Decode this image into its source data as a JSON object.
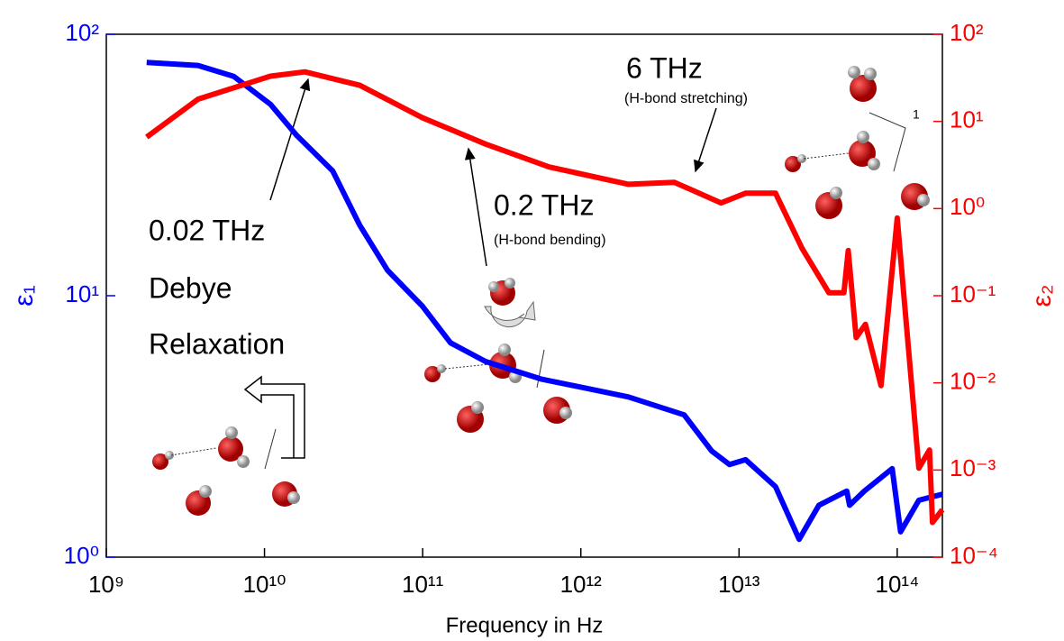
{
  "chart_data": {
    "type": "line",
    "xlabel": "Frequency in Hz",
    "ylabel": "ε₁",
    "y2label": "ε₂",
    "log_x": true,
    "log_y": true,
    "log_y2": true,
    "xlim": [
      1000000000.0,
      193000000000000.0
    ],
    "ylim": [
      1,
      100
    ],
    "y2lim": [
      0.0001,
      100
    ],
    "xticks": [
      {
        "value": 1000000000.0,
        "label": "10⁹"
      },
      {
        "value": 10000000000.0,
        "label": "10¹⁰"
      },
      {
        "value": 100000000000.0,
        "label": "10¹¹"
      },
      {
        "value": 1000000000000.0,
        "label": "10¹²"
      },
      {
        "value": 10000000000000.0,
        "label": "10¹³"
      },
      {
        "value": 100000000000000.0,
        "label": "10¹⁴"
      }
    ],
    "yticks": [
      {
        "value": 1,
        "label": "10⁰"
      },
      {
        "value": 10,
        "label": "10¹"
      },
      {
        "value": 100,
        "label": "10²"
      }
    ],
    "y2ticks": [
      {
        "value": 0.0001,
        "label": "10⁻⁴"
      },
      {
        "value": 0.001,
        "label": "10⁻³"
      },
      {
        "value": 0.01,
        "label": "10⁻²"
      },
      {
        "value": 0.1,
        "label": "10⁻¹"
      },
      {
        "value": 1,
        "label": "10⁰"
      },
      {
        "value": 10,
        "label": "10¹"
      },
      {
        "value": 100,
        "label": "10²"
      }
    ],
    "series": [
      {
        "name": "ε₁",
        "color": "#0000ff",
        "axis": "y",
        "x": [
          1800000000.0,
          3800000000.0,
          6400000000.0,
          10900000000.0,
          16000000000.0,
          27000000000.0,
          40000000000.0,
          60000000000.0,
          100000000000.0,
          150000000000.0,
          250000000000.0,
          560000000000.0,
          2000000000000.0,
          4500000000000.0,
          6700000000000.0,
          8700000000000.0,
          11000000000000.0,
          17000000000000.0,
          24000000000000.0,
          32000000000000.0,
          48000000000000.0,
          50000000000000.0,
          62000000000000.0,
          93000000000000.0,
          105000000000000.0,
          137000000000000.0,
          193000000000000.0
        ],
        "values": [
          78,
          76,
          69,
          54,
          41,
          30,
          18.6,
          12.5,
          9.1,
          6.6,
          5.6,
          4.8,
          4.1,
          3.5,
          2.55,
          2.26,
          2.36,
          1.86,
          1.17,
          1.58,
          1.79,
          1.58,
          1.79,
          2.18,
          1.25,
          1.65,
          1.74
        ]
      },
      {
        "name": "ε₂",
        "color": "#ff0000",
        "axis": "y2",
        "x": [
          1800000000.0,
          3800000000.0,
          10900000000.0,
          18000000000.0,
          40000000000.0,
          100000000000.0,
          250000000000.0,
          630000000000.0,
          2000000000000.0,
          3900000000000.0,
          7700000000000.0,
          11000000000000.0,
          17000000000000.0,
          25000000000000.0,
          37000000000000.0,
          46000000000000.0,
          49000000000000.0,
          55000000000000.0,
          63000000000000.0,
          79000000000000.0,
          100000000000000.0,
          110000000000000.0,
          137000000000000.0,
          160000000000000.0,
          167000000000000.0,
          193000000000000.0
        ],
        "values": [
          6.6,
          18,
          33,
          37,
          26,
          11,
          5.5,
          3.0,
          1.9,
          2.0,
          1.16,
          1.5,
          1.5,
          0.35,
          0.108,
          0.108,
          0.33,
          0.033,
          0.047,
          0.0093,
          0.78,
          0.105,
          0.00105,
          0.0017,
          0.00025,
          0.00035
        ]
      }
    ],
    "annotations": [
      "6 THz",
      "(H-bond stretching)",
      "0.2 THz",
      "(H-bond bending)",
      "0.02 THz",
      "Debye",
      "Relaxation",
      "1"
    ]
  }
}
